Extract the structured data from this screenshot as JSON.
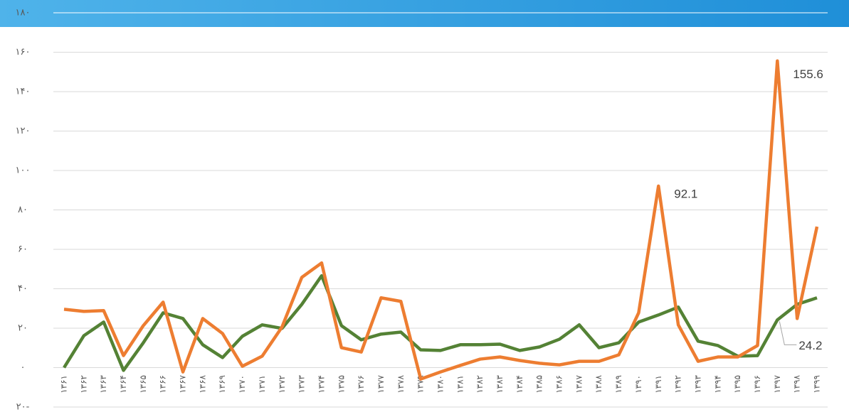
{
  "chart_data": {
    "type": "line",
    "categories": [
      "۱۳۶۱",
      "۱۳۶۲",
      "۱۳۶۳",
      "۱۳۶۴",
      "۱۳۶۵",
      "۱۳۶۶",
      "۱۳۶۷",
      "۱۳۶۸",
      "۱۳۶۹",
      "۱۳۷۰",
      "۱۳۷۱",
      "۱۳۷۲",
      "۱۳۷۳",
      "۱۳۷۴",
      "۱۳۷۵",
      "۱۳۷۶",
      "۱۳۷۷",
      "۱۳۷۸",
      "۱۳۷۹",
      "۱۳۸۰",
      "۱۳۸۱",
      "۱۳۸۲",
      "۱۳۸۳",
      "۱۳۸۴",
      "۱۳۸۵",
      "۱۳۸۶",
      "۱۳۸۷",
      "۱۳۸۸",
      "۱۳۸۹",
      "۱۳۹۰",
      "۱۳۹۱",
      "۱۳۹۲",
      "۱۳۹۳",
      "۱۳۹۴",
      "۱۳۹۵",
      "۱۳۹۶",
      "۱۳۹۷",
      "۱۳۹۸",
      "۱۳۹۹"
    ],
    "series": [
      {
        "color": "#548235",
        "values": [
          0,
          16.2,
          23.1,
          -1.4,
          12.6,
          27.8,
          24.9,
          11.6,
          5.1,
          15.9,
          21.7,
          19.9,
          32.1,
          46.6,
          21.3,
          14.1,
          17,
          18,
          9,
          8.7,
          11.6,
          11.6,
          11.9,
          8.7,
          10.5,
          14.4,
          21.7,
          10.1,
          12.6,
          23.1,
          26.7,
          30.7,
          13.4,
          11.2,
          5.8,
          6.1,
          24.2,
          32.1,
          35.4
        ]
      },
      {
        "color": "#ed7d31",
        "values": [
          29.6,
          28.5,
          28.9,
          6.1,
          21.3,
          33.2,
          -2.2,
          24.9,
          17.3,
          0.7,
          5.8,
          20.6,
          45.8,
          53.1,
          10.1,
          7.9,
          35.4,
          33.6,
          -5.8,
          -2.2,
          1.1,
          4.3,
          5.4,
          3.6,
          2.2,
          1.4,
          3.2,
          3.2,
          6.5,
          27.8,
          92.1,
          21.7,
          3.2,
          5.4,
          5.4,
          11.2,
          155.6,
          24.9,
          71.5
        ]
      }
    ],
    "ylim": [
      -20,
      180
    ],
    "yticks": [
      {
        "value": 180,
        "label": "۱۸۰"
      },
      {
        "value": 160,
        "label": "۱۶۰"
      },
      {
        "value": 140,
        "label": "۱۴۰"
      },
      {
        "value": 120,
        "label": "۱۲۰"
      },
      {
        "value": 100,
        "label": "۱۰۰"
      },
      {
        "value": 80,
        "label": "۸۰"
      },
      {
        "value": 60,
        "label": "۶۰"
      },
      {
        "value": 40,
        "label": "۴۰"
      },
      {
        "value": 20,
        "label": "۲۰"
      },
      {
        "value": 0,
        "label": "۰"
      },
      {
        "value": -20,
        "label": "۲۰-"
      }
    ],
    "grid": true
  }
}
